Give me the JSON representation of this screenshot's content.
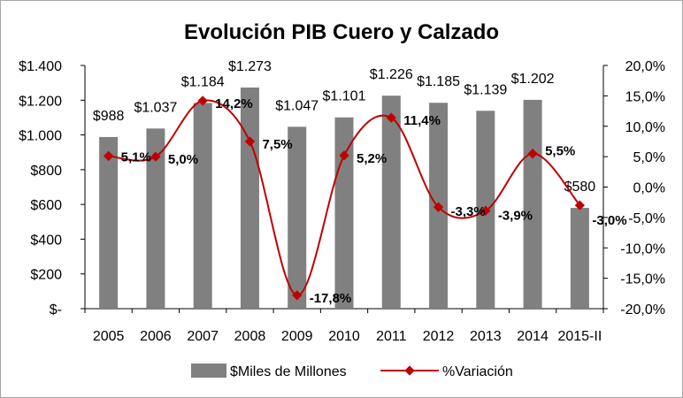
{
  "chart_data": {
    "type": "bar+line",
    "title": "Evolución PIB Cuero y Calzado",
    "categories": [
      "2005",
      "2006",
      "2007",
      "2008",
      "2009",
      "2010",
      "2011",
      "2012",
      "2013",
      "2014",
      "2015-II"
    ],
    "series": [
      {
        "name": "$Miles de Millones",
        "type": "bar",
        "axis": "left",
        "color": "#808080",
        "values": [
          988,
          1037,
          1184,
          1273,
          1047,
          1101,
          1226,
          1185,
          1139,
          1202,
          580
        ],
        "labels": [
          "$988",
          "$1.037",
          "$1.184",
          "$1.273",
          "$1.047",
          "$1.101",
          "$1.226",
          "$1.185",
          "$1.139",
          "$1.202",
          "$580"
        ]
      },
      {
        "name": "%Variación",
        "type": "line",
        "axis": "right",
        "color": "#c00000",
        "values": [
          5.1,
          5.0,
          14.2,
          7.5,
          -17.8,
          5.2,
          11.4,
          -3.3,
          -3.9,
          5.5,
          -3.0
        ],
        "labels": [
          "5,1%",
          "5,0%",
          "14,2%",
          "7,5%",
          "-17,8%",
          "5,2%",
          "11,4%",
          "-3,3%",
          "-3,9%",
          "5,5%",
          "-3,0%"
        ]
      }
    ],
    "y_left": {
      "min": 0,
      "max": 1400,
      "step": 200,
      "ticks": [
        "$-",
        "$200",
        "$400",
        "$600",
        "$800",
        "$1.000",
        "$1.200",
        "$1.400"
      ]
    },
    "y_right": {
      "min": -20,
      "max": 20,
      "step": 5,
      "ticks": [
        "-20,0%",
        "-15,0%",
        "-10,0%",
        "-5,0%",
        "0,0%",
        "5,0%",
        "10,0%",
        "15,0%",
        "20,0%"
      ]
    },
    "legend_position": "bottom",
    "grid": false
  }
}
